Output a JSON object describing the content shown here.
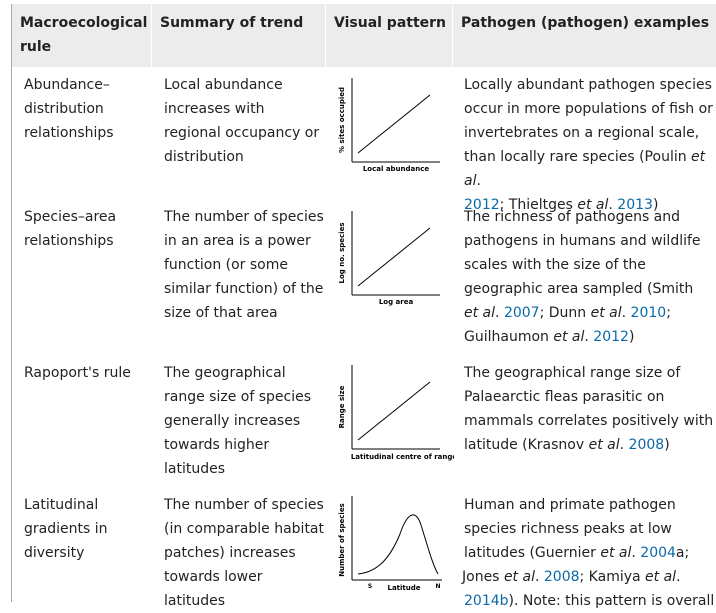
{
  "headers": {
    "rule": [
      "Macroecological",
      "rule"
    ],
    "summary": "Summary of trend",
    "visual": "Visual pattern",
    "examples": "Pathogen (pathogen) examples"
  },
  "rows": [
    {
      "rule": [
        "Abundance–",
        "distribution",
        "relationships"
      ],
      "summary": [
        "Local abundance",
        "increases with",
        "regional occupancy or",
        "distribution"
      ],
      "plot": {
        "y_label": "% sites occupied",
        "x_label": "Local abundance",
        "shape": "increasing-line"
      },
      "examples": {
        "l1": "Locally abundant pathogen species",
        "l2": "occur in more populations of fish or",
        "l3": "invertebrates on a regional scale,",
        "l4_pre": "than locally rare species (Poulin ",
        "etal": "et al",
        "dot": ".",
        "y1": "2012",
        "l5_mid": "; Thieltges ",
        "y2": "2013",
        "close": ")"
      }
    },
    {
      "rule": [
        "Species–area",
        "relationships"
      ],
      "summary": [
        "The number of species",
        "in an area is a power",
        "function (or some",
        "similar function) of the",
        "size of that area"
      ],
      "plot": {
        "y_label": "Log no. species",
        "x_label": "Log area",
        "shape": "increasing-line"
      },
      "examples": {
        "l1": "The richness of pathogens and",
        "l2": "pathogens in humans and wildlife",
        "l3": "scales with the size of the",
        "l4": "geographic area sampled (Smith",
        "y1": "2007",
        "mid1": "; Dunn ",
        "y2": "2010",
        "semi": ";",
        "l6_pre": "Guilhaumon ",
        "y3": "2012",
        "close": ")"
      }
    },
    {
      "rule": [
        "Rapoport's rule"
      ],
      "summary": [
        "The geographical",
        "range size of species",
        "generally increases",
        "towards higher",
        "latitudes"
      ],
      "plot": {
        "y_label": "Range size",
        "x_label": "Latitudinal centre of range",
        "shape": "increasing-line"
      },
      "examples": {
        "l1": "The geographical range size of",
        "l2": "Palaearctic fleas parasitic on",
        "l3": "mammals correlates positively with",
        "l4_pre": "latitude (Krasnov ",
        "y1": "2008",
        "close": ")"
      }
    },
    {
      "rule": [
        "Latitudinal",
        "gradients in",
        "diversity"
      ],
      "summary": [
        "The number of species",
        "(in comparable habitat",
        "patches) increases",
        "towards lower",
        "latitudes"
      ],
      "plot": {
        "y_label": "Number of species",
        "x_label": "Latitude",
        "x_left": "S",
        "x_right": "N",
        "shape": "hump"
      },
      "examples": {
        "l1": "Human and primate pathogen",
        "l2": "species richness peaks at low",
        "l3_pre": "latitudes (Guernier ",
        "y1": "2004",
        "y1_suffix": "a;",
        "l4_pre": "Jones ",
        "y2": "2008",
        "mid2": "; Kamiya ",
        "y3": "2014b",
        "l5_rest": "). Note: this pattern is overall"
      }
    }
  ]
}
